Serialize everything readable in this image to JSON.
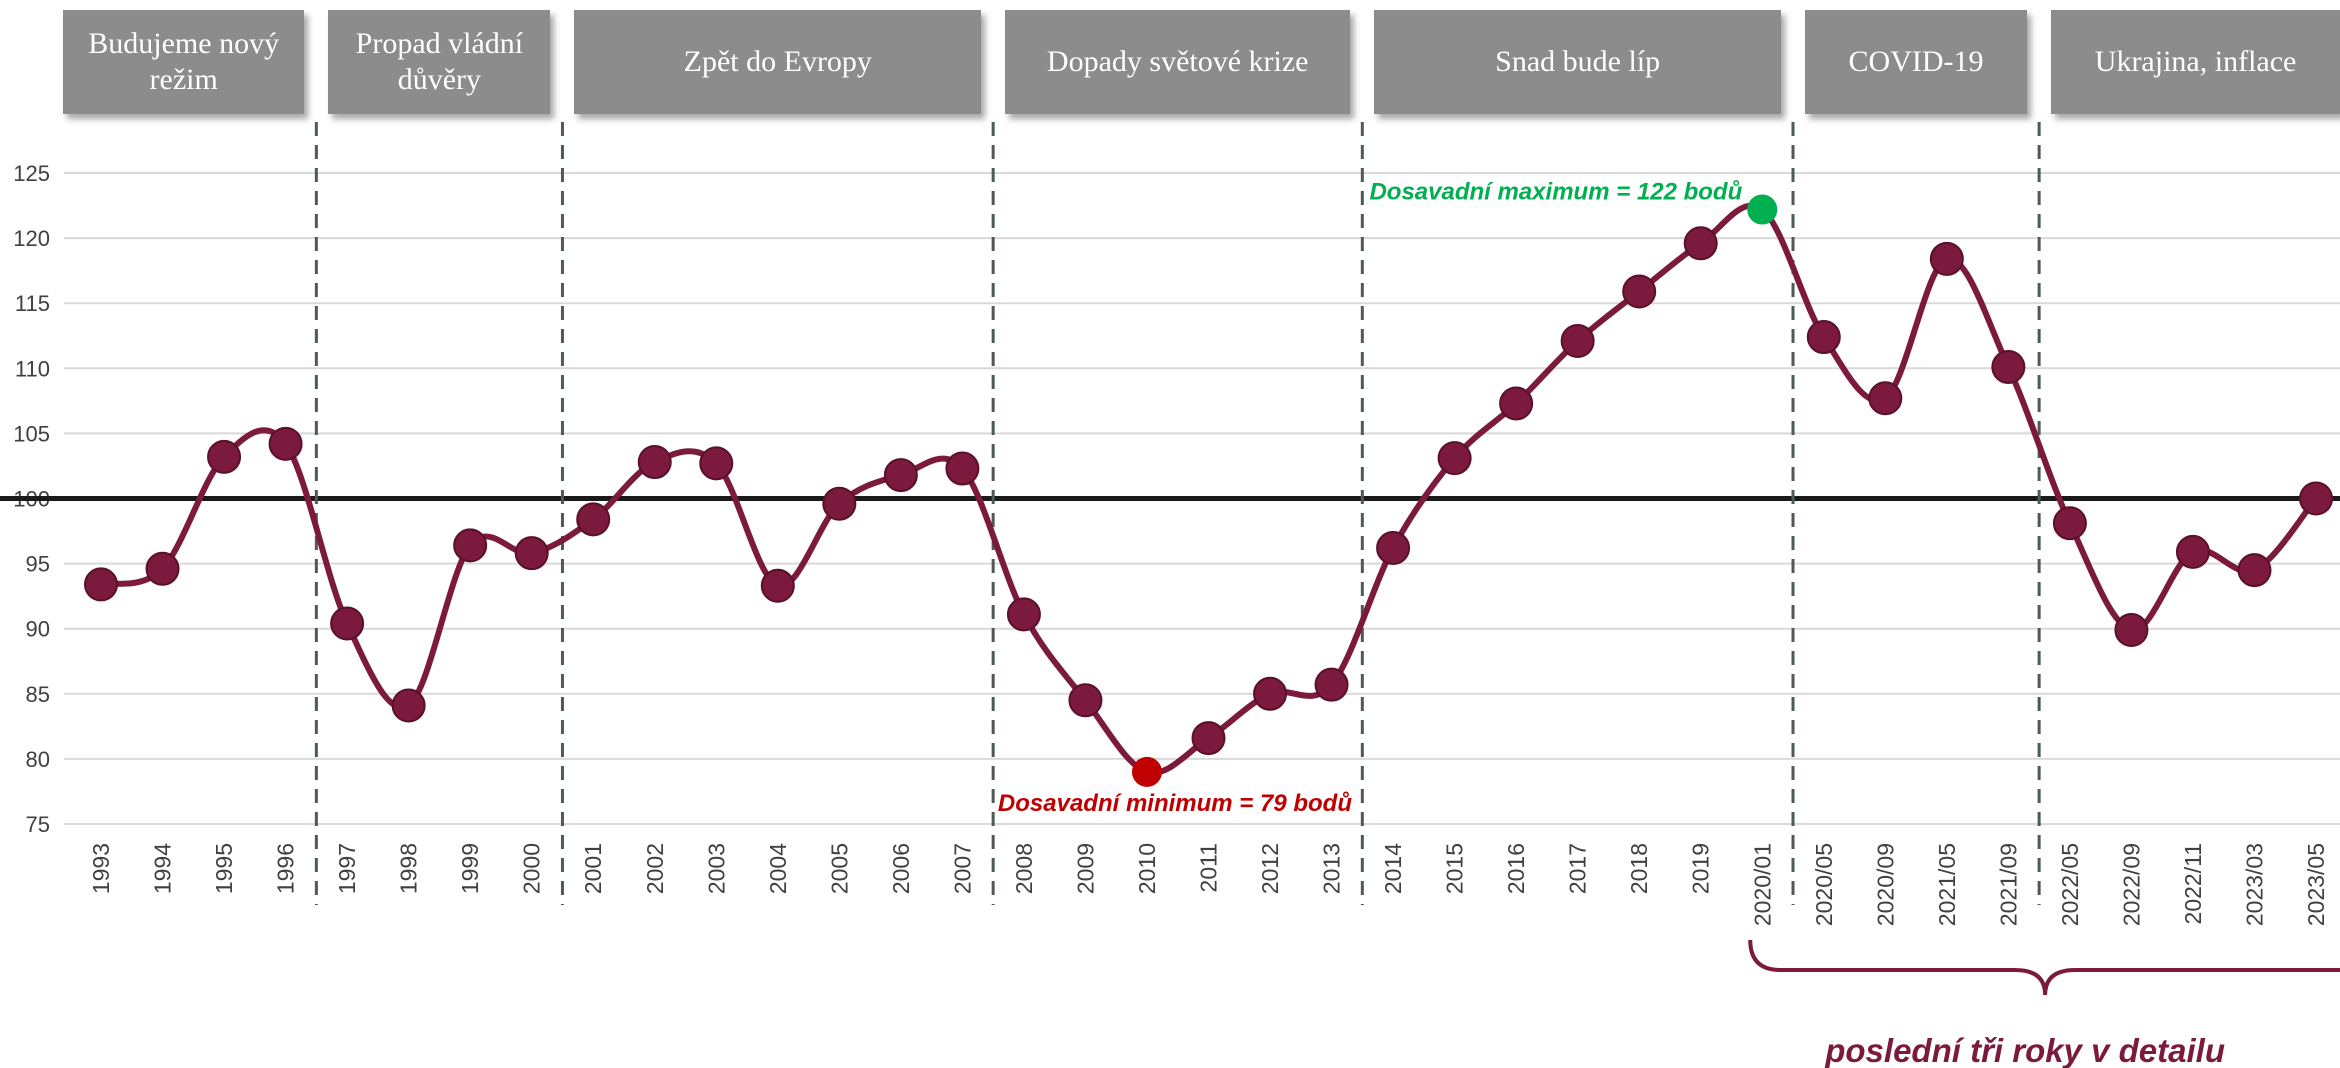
{
  "chart_data": {
    "type": "line",
    "categories": [
      "1993",
      "1994",
      "1995",
      "1996",
      "1997",
      "1998",
      "1999",
      "2000",
      "2001",
      "2002",
      "2003",
      "2004",
      "2005",
      "2006",
      "2007",
      "2008",
      "2009",
      "2010",
      "2011",
      "2012",
      "2013",
      "2014",
      "2015",
      "2016",
      "2017",
      "2018",
      "2019",
      "2020/01",
      "2020/05",
      "2020/09",
      "2021/05",
      "2021/09",
      "2022/05",
      "2022/09",
      "2022/11",
      "2023/03",
      "2023/05"
    ],
    "series": [
      {
        "color": "#7b1a3c",
        "values": [
          93.4,
          94.6,
          103.2,
          104.2,
          90.4,
          84.1,
          96.4,
          95.8,
          98.4,
          102.8,
          102.7,
          93.3,
          99.6,
          101.8,
          102.3,
          91.1,
          84.5,
          79,
          81.6,
          85,
          85.7,
          96.2,
          103.1,
          107.3,
          112.1,
          115.9,
          119.6,
          122.2,
          112.4,
          107.7,
          118.4,
          110.1,
          98.1,
          89.9,
          95.9,
          94.5,
          100
        ]
      }
    ],
    "ylim": [
      75,
      125
    ],
    "yticks": [
      75,
      80,
      85,
      90,
      95,
      100,
      105,
      110,
      115,
      120,
      125
    ],
    "grid": true,
    "baseline": 100,
    "periods": [
      {
        "label": "Budujeme nový režim",
        "from": "1993",
        "to": "1996"
      },
      {
        "label": "Propad vládní důvěry",
        "from": "1997",
        "to": "2000"
      },
      {
        "label": "Zpět do Evropy",
        "from": "2001",
        "to": "2007"
      },
      {
        "label": "Dopady  světové krize",
        "from": "2008",
        "to": "2013"
      },
      {
        "label": "Snad bude líp",
        "from": "2014",
        "to": "2020/01"
      },
      {
        "label": "COVID-19",
        "from": "2020/05",
        "to": "2021/09"
      },
      {
        "label": "Ukrajina, inflace",
        "from": "2022/05",
        "to": "2023/05"
      }
    ],
    "annotations": [
      {
        "text": "Dosavadní maximum = 122 bodů",
        "category": "2020/01",
        "color": "#00b050",
        "position": "above-left"
      },
      {
        "text": "Dosavadní minimum = 79 bodů",
        "category": "2010",
        "color": "#c00000",
        "position": "below"
      }
    ],
    "bracket": {
      "label": "poslední tři roky v detailu",
      "from": "2020/01",
      "to": "2023/05"
    }
  }
}
